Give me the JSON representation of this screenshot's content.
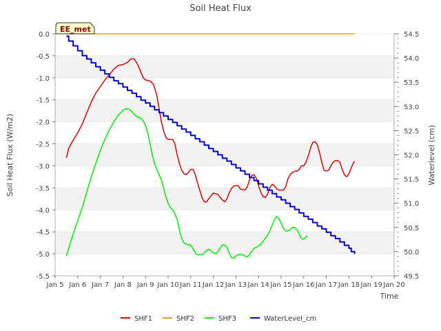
{
  "chart_data": {
    "type": "line",
    "title": "Soil Heat Flux",
    "xlabel": "Time",
    "ylabel": "Soil Heat Flux (W/m2)",
    "y2label": "Waterlevel (cm)",
    "badge": "EE_met",
    "xlim": [
      5,
      20
    ],
    "ylim": [
      -5.5,
      0.0
    ],
    "y2lim": [
      49.5,
      54.5
    ],
    "x_ticks": [
      {
        "v": 5,
        "label": "Jan 5"
      },
      {
        "v": 6,
        "label": "Jan 6"
      },
      {
        "v": 7,
        "label": "Jan 7"
      },
      {
        "v": 8,
        "label": "Jan 8"
      },
      {
        "v": 9,
        "label": "Jan 9"
      },
      {
        "v": 10,
        "label": "Jan 10"
      },
      {
        "v": 11,
        "label": "Jan 11"
      },
      {
        "v": 12,
        "label": "Jan 12"
      },
      {
        "v": 13,
        "label": "Jan 13"
      },
      {
        "v": 14,
        "label": "Jan 14"
      },
      {
        "v": 15,
        "label": "Jan 15"
      },
      {
        "v": 16,
        "label": "Jan 16"
      },
      {
        "v": 17,
        "label": "Jan 17"
      },
      {
        "v": 18,
        "label": "Jan 18"
      },
      {
        "v": 19,
        "label": "Jan 19"
      },
      {
        "v": 20,
        "label": "Jan 20"
      }
    ],
    "y_ticks": [
      {
        "v": 0.0,
        "label": "0.0"
      },
      {
        "v": -0.5,
        "label": "-0.5"
      },
      {
        "v": -1.0,
        "label": "-1.0"
      },
      {
        "v": -1.5,
        "label": "-1.5"
      },
      {
        "v": -2.0,
        "label": "-2.0"
      },
      {
        "v": -2.5,
        "label": "-2.5"
      },
      {
        "v": -3.0,
        "label": "-3.0"
      },
      {
        "v": -3.5,
        "label": "-3.5"
      },
      {
        "v": -4.0,
        "label": "-4.0"
      },
      {
        "v": -4.5,
        "label": "-4.5"
      },
      {
        "v": -5.0,
        "label": "-5.0"
      },
      {
        "v": -5.5,
        "label": "-5.5"
      }
    ],
    "y2_ticks": [
      {
        "v": 54.5,
        "label": "54.5"
      },
      {
        "v": 54.0,
        "label": "54.0"
      },
      {
        "v": 53.5,
        "label": "53.5"
      },
      {
        "v": 53.0,
        "label": "53.0"
      },
      {
        "v": 52.5,
        "label": "52.5"
      },
      {
        "v": 52.0,
        "label": "52.0"
      },
      {
        "v": 51.5,
        "label": "51.5"
      },
      {
        "v": 51.0,
        "label": "51.0"
      },
      {
        "v": 50.5,
        "label": "50.5"
      },
      {
        "v": 50.0,
        "label": "50.0"
      },
      {
        "v": 49.5,
        "label": "49.5"
      }
    ],
    "grid": "horizontal bands",
    "legend_position": "bottom",
    "series": [
      {
        "name": "SHF1",
        "color": "#dd0000",
        "axis": "left",
        "points": [
          [
            5.5,
            -2.82
          ],
          [
            5.6,
            -2.6
          ],
          [
            5.8,
            -2.42
          ],
          [
            6.0,
            -2.25
          ],
          [
            6.2,
            -2.05
          ],
          [
            6.4,
            -1.8
          ],
          [
            6.6,
            -1.55
          ],
          [
            6.8,
            -1.35
          ],
          [
            7.0,
            -1.2
          ],
          [
            7.2,
            -1.05
          ],
          [
            7.4,
            -0.93
          ],
          [
            7.6,
            -0.8
          ],
          [
            7.8,
            -0.72
          ],
          [
            8.0,
            -0.7
          ],
          [
            8.2,
            -0.65
          ],
          [
            8.35,
            -0.57
          ],
          [
            8.5,
            -0.57
          ],
          [
            8.6,
            -0.65
          ],
          [
            8.7,
            -0.75
          ],
          [
            8.8,
            -0.88
          ],
          [
            8.9,
            -1.0
          ],
          [
            9.0,
            -1.05
          ],
          [
            9.2,
            -1.07
          ],
          [
            9.35,
            -1.15
          ],
          [
            9.5,
            -1.4
          ],
          [
            9.6,
            -1.7
          ],
          [
            9.7,
            -2.0
          ],
          [
            9.8,
            -2.2
          ],
          [
            9.9,
            -2.35
          ],
          [
            10.0,
            -2.4
          ],
          [
            10.2,
            -2.4
          ],
          [
            10.3,
            -2.5
          ],
          [
            10.4,
            -2.75
          ],
          [
            10.5,
            -2.95
          ],
          [
            10.6,
            -3.1
          ],
          [
            10.7,
            -3.18
          ],
          [
            10.8,
            -3.2
          ],
          [
            10.9,
            -3.15
          ],
          [
            11.0,
            -3.08
          ],
          [
            11.1,
            -3.08
          ],
          [
            11.2,
            -3.2
          ],
          [
            11.3,
            -3.38
          ],
          [
            11.4,
            -3.55
          ],
          [
            11.5,
            -3.72
          ],
          [
            11.6,
            -3.82
          ],
          [
            11.7,
            -3.82
          ],
          [
            11.8,
            -3.75
          ],
          [
            11.9,
            -3.68
          ],
          [
            12.0,
            -3.62
          ],
          [
            12.2,
            -3.65
          ],
          [
            12.35,
            -3.75
          ],
          [
            12.5,
            -3.82
          ],
          [
            12.6,
            -3.75
          ],
          [
            12.7,
            -3.62
          ],
          [
            12.8,
            -3.52
          ],
          [
            12.9,
            -3.46
          ],
          [
            13.0,
            -3.45
          ],
          [
            13.1,
            -3.45
          ],
          [
            13.2,
            -3.53
          ],
          [
            13.4,
            -3.55
          ],
          [
            13.5,
            -3.48
          ],
          [
            13.6,
            -3.32
          ],
          [
            13.7,
            -3.22
          ],
          [
            13.8,
            -3.2
          ],
          [
            13.9,
            -3.28
          ],
          [
            14.0,
            -3.45
          ],
          [
            14.1,
            -3.6
          ],
          [
            14.2,
            -3.7
          ],
          [
            14.3,
            -3.72
          ],
          [
            14.4,
            -3.65
          ],
          [
            14.5,
            -3.5
          ],
          [
            14.6,
            -3.42
          ],
          [
            14.7,
            -3.45
          ],
          [
            14.8,
            -3.52
          ],
          [
            14.9,
            -3.55
          ],
          [
            15.1,
            -3.55
          ],
          [
            15.2,
            -3.48
          ],
          [
            15.3,
            -3.3
          ],
          [
            15.4,
            -3.2
          ],
          [
            15.5,
            -3.15
          ],
          [
            15.6,
            -3.12
          ],
          [
            15.7,
            -3.12
          ],
          [
            15.8,
            -3.08
          ],
          [
            15.9,
            -3.0
          ],
          [
            16.0,
            -3.0
          ],
          [
            16.1,
            -2.92
          ],
          [
            16.2,
            -2.78
          ],
          [
            16.3,
            -2.6
          ],
          [
            16.4,
            -2.47
          ],
          [
            16.5,
            -2.45
          ],
          [
            16.6,
            -2.52
          ],
          [
            16.7,
            -2.7
          ],
          [
            16.8,
            -2.92
          ],
          [
            16.9,
            -3.1
          ],
          [
            17.0,
            -3.12
          ],
          [
            17.1,
            -3.1
          ],
          [
            17.2,
            -3.0
          ],
          [
            17.3,
            -2.92
          ],
          [
            17.4,
            -2.88
          ],
          [
            17.5,
            -2.88
          ],
          [
            17.6,
            -2.92
          ],
          [
            17.7,
            -3.08
          ],
          [
            17.8,
            -3.2
          ],
          [
            17.9,
            -3.25
          ],
          [
            18.0,
            -3.18
          ],
          [
            18.1,
            -3.05
          ],
          [
            18.2,
            -2.93
          ],
          [
            18.25,
            -2.9
          ]
        ]
      },
      {
        "name": "SHF2",
        "color": "#e8a000",
        "axis": "left",
        "points": [
          [
            5.5,
            0.0
          ],
          [
            18.25,
            0.0
          ]
        ]
      },
      {
        "name": "SHF3",
        "color": "#00ee00",
        "axis": "left",
        "points": [
          [
            5.5,
            -5.05
          ],
          [
            5.6,
            -4.88
          ],
          [
            5.8,
            -4.55
          ],
          [
            6.0,
            -4.25
          ],
          [
            6.2,
            -3.95
          ],
          [
            6.4,
            -3.6
          ],
          [
            6.6,
            -3.25
          ],
          [
            6.8,
            -2.95
          ],
          [
            7.0,
            -2.65
          ],
          [
            7.2,
            -2.4
          ],
          [
            7.4,
            -2.18
          ],
          [
            7.6,
            -2.0
          ],
          [
            7.8,
            -1.85
          ],
          [
            8.0,
            -1.74
          ],
          [
            8.15,
            -1.7
          ],
          [
            8.3,
            -1.72
          ],
          [
            8.45,
            -1.8
          ],
          [
            8.6,
            -1.88
          ],
          [
            8.8,
            -1.92
          ],
          [
            8.95,
            -2.02
          ],
          [
            9.1,
            -2.25
          ],
          [
            9.2,
            -2.5
          ],
          [
            9.3,
            -2.75
          ],
          [
            9.4,
            -2.95
          ],
          [
            9.5,
            -3.08
          ],
          [
            9.6,
            -3.2
          ],
          [
            9.7,
            -3.32
          ],
          [
            9.8,
            -3.5
          ],
          [
            9.9,
            -3.7
          ],
          [
            10.0,
            -3.85
          ],
          [
            10.1,
            -3.95
          ],
          [
            10.2,
            -4.0
          ],
          [
            10.3,
            -4.08
          ],
          [
            10.4,
            -4.22
          ],
          [
            10.5,
            -4.45
          ],
          [
            10.6,
            -4.65
          ],
          [
            10.7,
            -4.75
          ],
          [
            10.8,
            -4.78
          ],
          [
            11.0,
            -4.8
          ],
          [
            11.1,
            -4.88
          ],
          [
            11.2,
            -4.98
          ],
          [
            11.3,
            -5.02
          ],
          [
            11.5,
            -5.02
          ],
          [
            11.6,
            -4.98
          ],
          [
            11.7,
            -4.92
          ],
          [
            11.8,
            -4.9
          ],
          [
            11.9,
            -4.93
          ],
          [
            12.0,
            -4.98
          ],
          [
            12.1,
            -5.0
          ],
          [
            12.2,
            -4.95
          ],
          [
            12.3,
            -4.87
          ],
          [
            12.4,
            -4.8
          ],
          [
            12.5,
            -4.8
          ],
          [
            12.6,
            -4.85
          ],
          [
            12.7,
            -4.98
          ],
          [
            12.8,
            -5.08
          ],
          [
            12.9,
            -5.1
          ],
          [
            13.0,
            -5.05
          ],
          [
            13.1,
            -5.02
          ],
          [
            13.3,
            -5.02
          ],
          [
            13.4,
            -5.05
          ],
          [
            13.5,
            -5.07
          ],
          [
            13.6,
            -5.02
          ],
          [
            13.7,
            -4.95
          ],
          [
            13.8,
            -4.88
          ],
          [
            13.9,
            -4.85
          ],
          [
            14.0,
            -4.82
          ],
          [
            14.1,
            -4.78
          ],
          [
            14.2,
            -4.72
          ],
          [
            14.3,
            -4.65
          ],
          [
            14.4,
            -4.58
          ],
          [
            14.5,
            -4.48
          ],
          [
            14.6,
            -4.35
          ],
          [
            14.7,
            -4.22
          ],
          [
            14.8,
            -4.15
          ],
          [
            14.9,
            -4.2
          ],
          [
            15.0,
            -4.3
          ],
          [
            15.1,
            -4.42
          ],
          [
            15.2,
            -4.48
          ],
          [
            15.3,
            -4.48
          ],
          [
            15.4,
            -4.45
          ],
          [
            15.5,
            -4.4
          ],
          [
            15.6,
            -4.4
          ],
          [
            15.7,
            -4.45
          ],
          [
            15.8,
            -4.55
          ],
          [
            15.9,
            -4.65
          ],
          [
            16.0,
            -4.67
          ],
          [
            16.1,
            -4.62
          ],
          [
            16.15,
            -4.58
          ]
        ]
      },
      {
        "name": "WaterLevel_cm",
        "color": "#0000cc",
        "axis": "right",
        "points": [
          [
            5.5,
            54.45
          ],
          [
            5.6,
            54.35
          ],
          [
            5.8,
            54.25
          ],
          [
            6.0,
            54.15
          ],
          [
            6.2,
            54.05
          ],
          [
            6.4,
            53.98
          ],
          [
            6.6,
            53.9
          ],
          [
            6.8,
            53.82
          ],
          [
            7.0,
            53.75
          ],
          [
            7.2,
            53.67
          ],
          [
            7.4,
            53.6
          ],
          [
            7.6,
            53.53
          ],
          [
            7.8,
            53.47
          ],
          [
            8.0,
            53.4
          ],
          [
            8.2,
            53.33
          ],
          [
            8.4,
            53.27
          ],
          [
            8.6,
            53.2
          ],
          [
            8.8,
            53.13
          ],
          [
            9.0,
            53.07
          ],
          [
            9.2,
            53.0
          ],
          [
            9.4,
            52.93
          ],
          [
            9.6,
            52.87
          ],
          [
            9.8,
            52.8
          ],
          [
            10.0,
            52.73
          ],
          [
            10.2,
            52.67
          ],
          [
            10.4,
            52.6
          ],
          [
            10.6,
            52.53
          ],
          [
            10.8,
            52.47
          ],
          [
            11.0,
            52.4
          ],
          [
            11.2,
            52.33
          ],
          [
            11.4,
            52.27
          ],
          [
            11.6,
            52.2
          ],
          [
            11.8,
            52.13
          ],
          [
            12.0,
            52.07
          ],
          [
            12.2,
            52.0
          ],
          [
            12.4,
            51.93
          ],
          [
            12.6,
            51.87
          ],
          [
            12.8,
            51.8
          ],
          [
            13.0,
            51.73
          ],
          [
            13.2,
            51.67
          ],
          [
            13.4,
            51.6
          ],
          [
            13.6,
            51.53
          ],
          [
            13.8,
            51.47
          ],
          [
            14.0,
            51.4
          ],
          [
            14.2,
            51.33
          ],
          [
            14.4,
            51.27
          ],
          [
            14.6,
            51.2
          ],
          [
            14.8,
            51.13
          ],
          [
            15.0,
            51.07
          ],
          [
            15.2,
            51.0
          ],
          [
            15.4,
            50.93
          ],
          [
            15.6,
            50.87
          ],
          [
            15.8,
            50.8
          ],
          [
            16.0,
            50.73
          ],
          [
            16.2,
            50.67
          ],
          [
            16.4,
            50.6
          ],
          [
            16.6,
            50.53
          ],
          [
            16.8,
            50.47
          ],
          [
            17.0,
            50.4
          ],
          [
            17.2,
            50.33
          ],
          [
            17.4,
            50.27
          ],
          [
            17.6,
            50.2
          ],
          [
            17.8,
            50.13
          ],
          [
            18.0,
            50.07
          ],
          [
            18.1,
            50.0
          ],
          [
            18.25,
            49.95
          ]
        ]
      }
    ]
  }
}
